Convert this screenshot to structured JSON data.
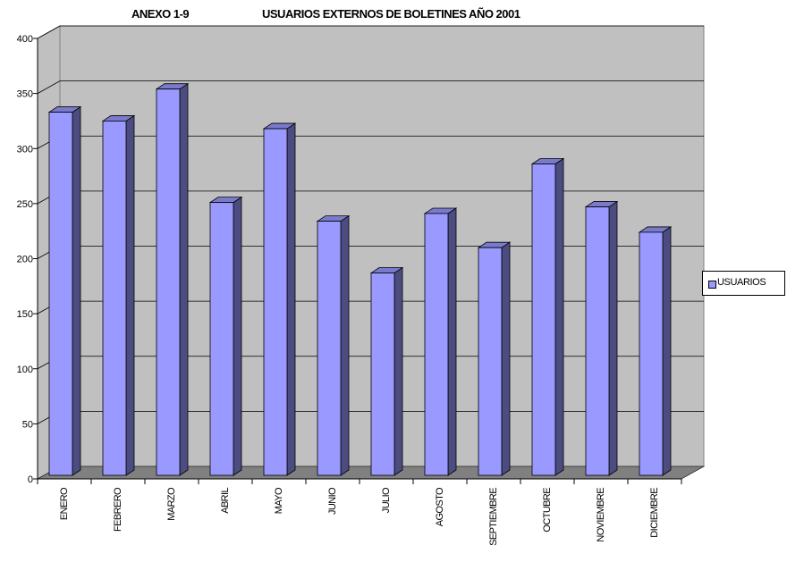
{
  "header": {
    "annex_label": "ANEXO 1-9",
    "chart_title": "USUARIOS EXTERNOS DE BOLETINES AÑO 2001"
  },
  "legend": {
    "label": "USUARIOS"
  },
  "colors": {
    "bar_front": "#9999ff",
    "bar_side": "#4c4c80",
    "bar_top": "#7a7acc",
    "wall": "#c0c0c0",
    "floor": "#808080",
    "gridline": "#000000"
  },
  "chart_data": {
    "type": "bar",
    "title": "USUARIOS EXTERNOS DE BOLETINES AÑO 2001",
    "categories": [
      "ENERO",
      "FEBRERO",
      "MARZO",
      "ABRIL",
      "MAYO",
      "JUNIO",
      "JULIO",
      "AGOSTO",
      "SEPTIEMBRE",
      "OCTUBRE",
      "NOVIEMBRE",
      "DICIEMBRE"
    ],
    "series": [
      {
        "name": "USUARIOS",
        "values": [
          333,
          325,
          354,
          251,
          318,
          234,
          187,
          241,
          210,
          286,
          247,
          224
        ]
      }
    ],
    "yticks": [
      0,
      50,
      100,
      150,
      200,
      250,
      300,
      350,
      400
    ],
    "ylim": [
      0,
      400
    ],
    "grid": true,
    "legend_position": "right",
    "style": "3d-column"
  }
}
